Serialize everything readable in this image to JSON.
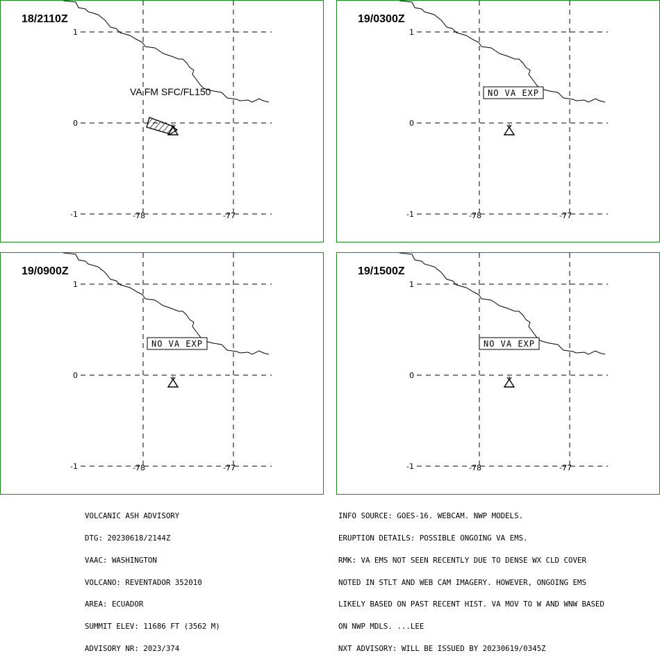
{
  "panels": [
    {
      "time": "18/2110Z",
      "label": "VA FM SFC/FL150",
      "type": "ash"
    },
    {
      "time": "19/0300Z",
      "label": "NO VA EXP",
      "type": "none"
    },
    {
      "time": "19/0900Z",
      "label": "NO VA EXP",
      "type": "none"
    },
    {
      "time": "19/1500Z",
      "label": "NO VA EXP",
      "type": "none"
    }
  ],
  "axes": {
    "lat_ticks": [
      "1",
      "0",
      "-1"
    ],
    "lon_ticks": [
      "-78",
      "-77"
    ]
  },
  "left_info": [
    "VOLCANIC ASH ADVISORY",
    "DTG: 20230618/2144Z",
    "VAAC: WASHINGTON",
    "VOLCANO: REVENTADOR 352010",
    "AREA: ECUADOR",
    "SUMMIT ELEV: 11686 FT (3562 M)",
    "ADVISORY NR: 2023/374"
  ],
  "right_info": [
    "INFO SOURCE: GOES-16. WEBCAM. NWP MODELS.",
    "ERUPTION DETAILS: POSSIBLE ONGOING VA EMS.",
    "RMK: VA EMS NOT SEEN RECENTLY DUE TO DENSE WX CLD COVER",
    "NOTED IN STLT AND WEB CAM IMAGERY. HOWEVER, ONGOING EMS",
    "LIKELY BASED ON PAST RECENT HIST. VA MOV TO W AND WNW BASED",
    "ON NWP MDLS. ...LEE",
    "NXT ADVISORY: WILL BE ISSUED BY 20230619/0345Z"
  ],
  "colors": {
    "frame": "#1a8a1a",
    "ink": "#000000"
  },
  "icons": {
    "volcano": "volcano-icon"
  }
}
